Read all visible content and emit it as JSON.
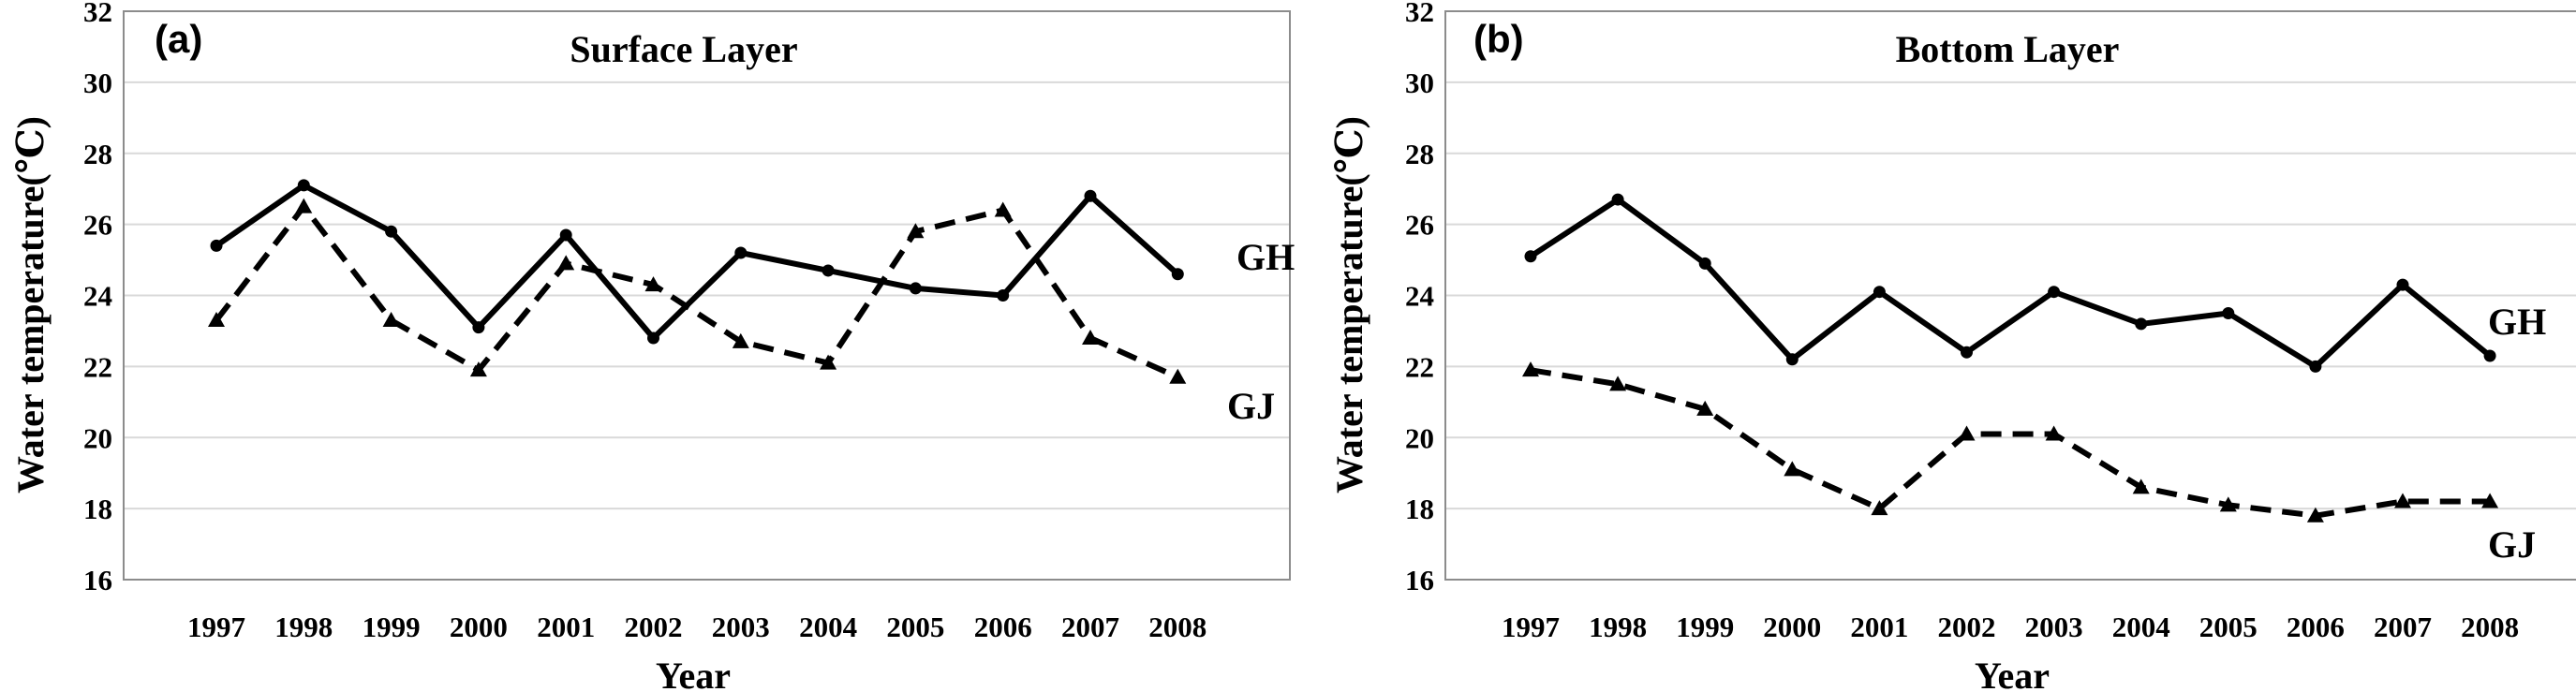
{
  "chart_data": [
    {
      "type": "line",
      "panel_label": "(a)",
      "title": "Surface Layer",
      "xlabel": "Year",
      "ylabel": "Water temperature(℃)",
      "ylim": [
        16,
        32
      ],
      "yticks": [
        "16",
        "18",
        "20",
        "22",
        "24",
        "26",
        "28",
        "30",
        "32"
      ],
      "categories": [
        "1997",
        "1998",
        "1999",
        "2000",
        "2001",
        "2002",
        "2003",
        "2004",
        "2005",
        "2006",
        "2007",
        "2008"
      ],
      "grid": true,
      "series": [
        {
          "name": "GH",
          "style": "solid",
          "marker": "circle",
          "values": [
            25.4,
            27.1,
            25.8,
            23.1,
            25.7,
            22.8,
            25.2,
            24.7,
            24.2,
            24.0,
            26.8,
            24.6
          ]
        },
        {
          "name": "GJ",
          "style": "dashed",
          "marker": "triangle",
          "values": [
            23.3,
            26.5,
            23.3,
            21.9,
            24.9,
            24.3,
            22.7,
            22.1,
            25.8,
            26.4,
            22.8,
            21.7
          ]
        }
      ]
    },
    {
      "type": "line",
      "panel_label": "(b)",
      "title": "Bottom Layer",
      "xlabel": "Year",
      "ylabel": "Water temperature(℃)",
      "ylim": [
        16,
        32
      ],
      "yticks": [
        "16",
        "18",
        "20",
        "22",
        "24",
        "26",
        "28",
        "30",
        "32"
      ],
      "categories": [
        "1997",
        "1998",
        "1999",
        "2000",
        "2001",
        "2002",
        "2003",
        "2004",
        "2005",
        "2006",
        "2007",
        "2008"
      ],
      "grid": true,
      "series": [
        {
          "name": "GH",
          "style": "solid",
          "marker": "circle",
          "values": [
            25.1,
            26.7,
            24.9,
            22.2,
            24.1,
            22.4,
            24.1,
            23.2,
            23.5,
            22.0,
            24.3,
            22.3
          ]
        },
        {
          "name": "GJ",
          "style": "dashed",
          "marker": "triangle",
          "values": [
            21.9,
            21.5,
            20.8,
            19.1,
            18.0,
            20.1,
            20.1,
            18.6,
            18.1,
            17.8,
            18.2,
            18.2
          ]
        }
      ]
    }
  ],
  "colors": {
    "line": "#000000",
    "grid": "#d9d9d9",
    "frame": "#8c8c8c"
  }
}
